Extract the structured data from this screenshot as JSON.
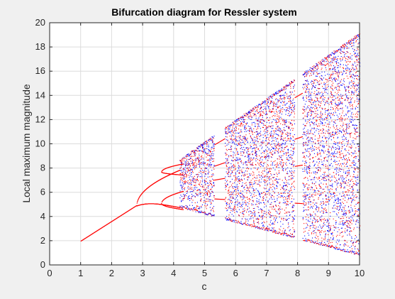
{
  "chart_data": {
    "type": "scatter",
    "title": "Bifurcation diagram for Ressler system",
    "xlabel": "c",
    "ylabel": "Local maximum magnitude",
    "xlim": [
      0,
      10
    ],
    "ylim": [
      0,
      20
    ],
    "xticks": [
      0,
      1,
      2,
      3,
      4,
      5,
      6,
      7,
      8,
      9,
      10
    ],
    "yticks": [
      0,
      2,
      4,
      6,
      8,
      10,
      12,
      14,
      16,
      18,
      20
    ],
    "grid": true,
    "legend": "none",
    "colors": {
      "point_a": "#ff0000",
      "point_b": "#0000ff",
      "grid": "#dcdcdc",
      "axes_bg": "#ffffff"
    },
    "series": [
      {
        "color": "#ff0000",
        "description_points": [
          [
            1.0,
            2.0
          ],
          [
            1.5,
            2.8
          ],
          [
            2.0,
            3.5
          ],
          [
            2.5,
            4.3
          ],
          [
            2.8,
            4.9
          ],
          [
            3.0,
            6.2
          ],
          [
            3.5,
            7.3
          ],
          [
            4.0,
            7.8
          ],
          [
            4.2,
            8.0
          ],
          [
            3.0,
            4.9
          ],
          [
            3.5,
            5.0
          ],
          [
            3.8,
            5.2
          ],
          [
            4.0,
            4.8
          ],
          [
            4.5,
            4.5
          ],
          [
            5.0,
            4.2
          ],
          [
            5.5,
            3.8
          ]
        ]
      },
      {
        "color": "#0000ff",
        "description_points": [
          [
            5.0,
            10.4
          ],
          [
            6.0,
            12.0
          ],
          [
            7.0,
            13.8
          ],
          [
            8.0,
            15.6
          ],
          [
            9.0,
            17.4
          ],
          [
            10.0,
            19.2
          ],
          [
            6.0,
            3.0
          ],
          [
            7.0,
            2.4
          ],
          [
            8.0,
            1.8
          ],
          [
            9.0,
            1.2
          ],
          [
            10.0,
            0.5
          ]
        ]
      }
    ],
    "periodic_windows": [
      [
        5.3,
        5.65
      ],
      [
        7.9,
        8.15
      ]
    ]
  }
}
